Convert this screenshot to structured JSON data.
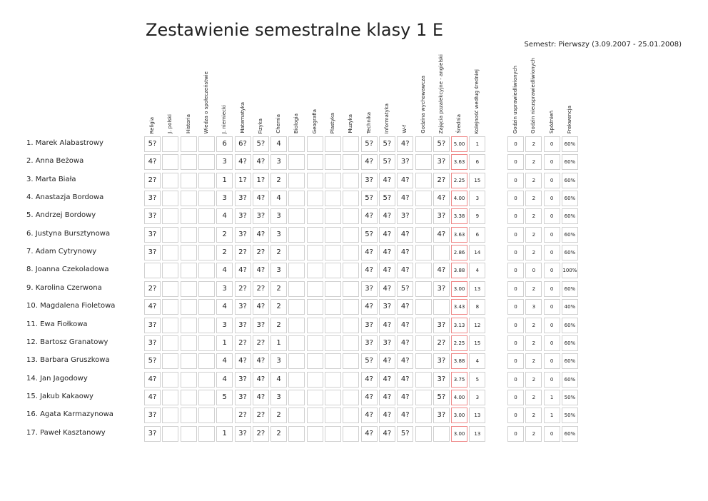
{
  "header": {
    "title": "Zestawienie semestralne klasy 1 E",
    "semester": "Semestr: Pierwszy (3.09.2007 - 25.01.2008)"
  },
  "columns": [
    "Religia",
    "J. polski",
    "Historia",
    "Wiedza o społeczeństwie",
    "J. niemiecki",
    "Matematyka",
    "Fizyka",
    "Chemia",
    "Biologia",
    "Geografia",
    "Plastyka",
    "Muzyka",
    "Technika",
    "Informatyka",
    "W-f",
    "Godzina wychowawcza",
    "Zajęcia pozalekcyjne - angielski",
    "Średnia",
    "Kolejność według średniej"
  ],
  "attendance_columns": [
    "Godzin usprawiedliwionych",
    "Godzin nieusprawiedliwionych",
    "Spóźnień",
    "Frekwencja"
  ],
  "rows": [
    {
      "name": "1. Marek Alabastrowy",
      "grades": [
        "5?",
        null,
        null,
        null,
        "6",
        "6?",
        "5?",
        "4",
        null,
        null,
        null,
        null,
        "5?",
        "5?",
        "4?",
        null,
        "5?"
      ],
      "average": "5.00",
      "rank": 1,
      "attendance": [
        0,
        2,
        0,
        "60%"
      ]
    },
    {
      "name": "2. Anna Beżowa",
      "grades": [
        "4?",
        null,
        null,
        null,
        "3",
        "4?",
        "4?",
        "3",
        null,
        null,
        null,
        null,
        "4?",
        "5?",
        "3?",
        null,
        "3?"
      ],
      "average": "3.63",
      "rank": 6,
      "attendance": [
        0,
        2,
        0,
        "60%"
      ]
    },
    {
      "name": "3. Marta Biała",
      "grades": [
        "2?",
        null,
        null,
        null,
        "1",
        "1?",
        "1?",
        "2",
        null,
        null,
        null,
        null,
        "3?",
        "4?",
        "4?",
        null,
        "2?"
      ],
      "average": "2.25",
      "rank": 15,
      "attendance": [
        0,
        2,
        0,
        "60%"
      ]
    },
    {
      "name": "4. Anastazja Bordowa",
      "grades": [
        "3?",
        null,
        null,
        null,
        "3",
        "3?",
        "4?",
        "4",
        null,
        null,
        null,
        null,
        "5?",
        "5?",
        "4?",
        null,
        "4?"
      ],
      "average": "4.00",
      "rank": 3,
      "attendance": [
        0,
        2,
        0,
        "60%"
      ]
    },
    {
      "name": "5. Andrzej Bordowy",
      "grades": [
        "3?",
        null,
        null,
        null,
        "4",
        "3?",
        "3?",
        "3",
        null,
        null,
        null,
        null,
        "4?",
        "4?",
        "3?",
        null,
        "3?"
      ],
      "average": "3.38",
      "rank": 9,
      "attendance": [
        0,
        2,
        0,
        "60%"
      ]
    },
    {
      "name": "6. Justyna Bursztynowa",
      "grades": [
        "3?",
        null,
        null,
        null,
        "2",
        "3?",
        "4?",
        "3",
        null,
        null,
        null,
        null,
        "5?",
        "4?",
        "4?",
        null,
        "4?"
      ],
      "average": "3.63",
      "rank": 6,
      "attendance": [
        0,
        2,
        0,
        "60%"
      ]
    },
    {
      "name": "7. Adam Cytrynowy",
      "grades": [
        "3?",
        null,
        null,
        null,
        "2",
        "2?",
        "2?",
        "2",
        null,
        null,
        null,
        null,
        "4?",
        "4?",
        "4?",
        null,
        null
      ],
      "average": "2.86",
      "rank": 14,
      "attendance": [
        0,
        2,
        0,
        "60%"
      ]
    },
    {
      "name": "8. Joanna Czekoladowa",
      "grades": [
        null,
        null,
        null,
        null,
        "4",
        "4?",
        "4?",
        "3",
        null,
        null,
        null,
        null,
        "4?",
        "4?",
        "4?",
        null,
        "4?"
      ],
      "average": "3.88",
      "rank": 4,
      "attendance": [
        0,
        0,
        0,
        "100%"
      ]
    },
    {
      "name": "9. Karolina Czerwona",
      "grades": [
        "2?",
        null,
        null,
        null,
        "3",
        "2?",
        "2?",
        "2",
        null,
        null,
        null,
        null,
        "3?",
        "4?",
        "5?",
        null,
        "3?"
      ],
      "average": "3.00",
      "rank": 13,
      "attendance": [
        0,
        2,
        0,
        "60%"
      ]
    },
    {
      "name": "10. Magdalena Fioletowa",
      "grades": [
        "4?",
        null,
        null,
        null,
        "4",
        "3?",
        "4?",
        "2",
        null,
        null,
        null,
        null,
        "4?",
        "3?",
        "4?",
        null,
        null
      ],
      "average": "3.43",
      "rank": 8,
      "attendance": [
        0,
        3,
        0,
        "40%"
      ]
    },
    {
      "name": "11. Ewa Fiołkowa",
      "grades": [
        "3?",
        null,
        null,
        null,
        "3",
        "3?",
        "3?",
        "2",
        null,
        null,
        null,
        null,
        "3?",
        "4?",
        "4?",
        null,
        "3?"
      ],
      "average": "3.13",
      "rank": 12,
      "attendance": [
        0,
        2,
        0,
        "60%"
      ]
    },
    {
      "name": "12. Bartosz Granatowy",
      "grades": [
        "3?",
        null,
        null,
        null,
        "1",
        "2?",
        "2?",
        "1",
        null,
        null,
        null,
        null,
        "3?",
        "3?",
        "4?",
        null,
        "2?"
      ],
      "average": "2.25",
      "rank": 15,
      "attendance": [
        0,
        2,
        0,
        "60%"
      ]
    },
    {
      "name": "13. Barbara Gruszkowa",
      "grades": [
        "5?",
        null,
        null,
        null,
        "4",
        "4?",
        "4?",
        "3",
        null,
        null,
        null,
        null,
        "5?",
        "4?",
        "4?",
        null,
        "3?"
      ],
      "average": "3.88",
      "rank": 4,
      "attendance": [
        0,
        2,
        0,
        "60%"
      ]
    },
    {
      "name": "14. Jan Jagodowy",
      "grades": [
        "4?",
        null,
        null,
        null,
        "4",
        "3?",
        "4?",
        "4",
        null,
        null,
        null,
        null,
        "4?",
        "4?",
        "4?",
        null,
        "3?"
      ],
      "average": "3.75",
      "rank": 5,
      "attendance": [
        0,
        2,
        0,
        "60%"
      ]
    },
    {
      "name": "15. Jakub Kakaowy",
      "grades": [
        "4?",
        null,
        null,
        null,
        "5",
        "3?",
        "4?",
        "3",
        null,
        null,
        null,
        null,
        "4?",
        "4?",
        "4?",
        null,
        "5?"
      ],
      "average": "4.00",
      "rank": 3,
      "attendance": [
        0,
        2,
        1,
        "50%"
      ]
    },
    {
      "name": "16. Agata Karmazynowa",
      "grades": [
        "3?",
        null,
        null,
        null,
        null,
        "2?",
        "2?",
        "2",
        null,
        null,
        null,
        null,
        "4?",
        "4?",
        "4?",
        null,
        "3?"
      ],
      "average": "3.00",
      "rank": 13,
      "attendance": [
        0,
        2,
        1,
        "50%"
      ]
    },
    {
      "name": "17. Paweł Kasztanowy",
      "grades": [
        "3?",
        null,
        null,
        null,
        "1",
        "3?",
        "2?",
        "2",
        null,
        null,
        null,
        null,
        "4?",
        "4?",
        "5?",
        null,
        null
      ],
      "average": "3.00",
      "rank": 13,
      "attendance": [
        0,
        2,
        0,
        "60%"
      ]
    }
  ]
}
